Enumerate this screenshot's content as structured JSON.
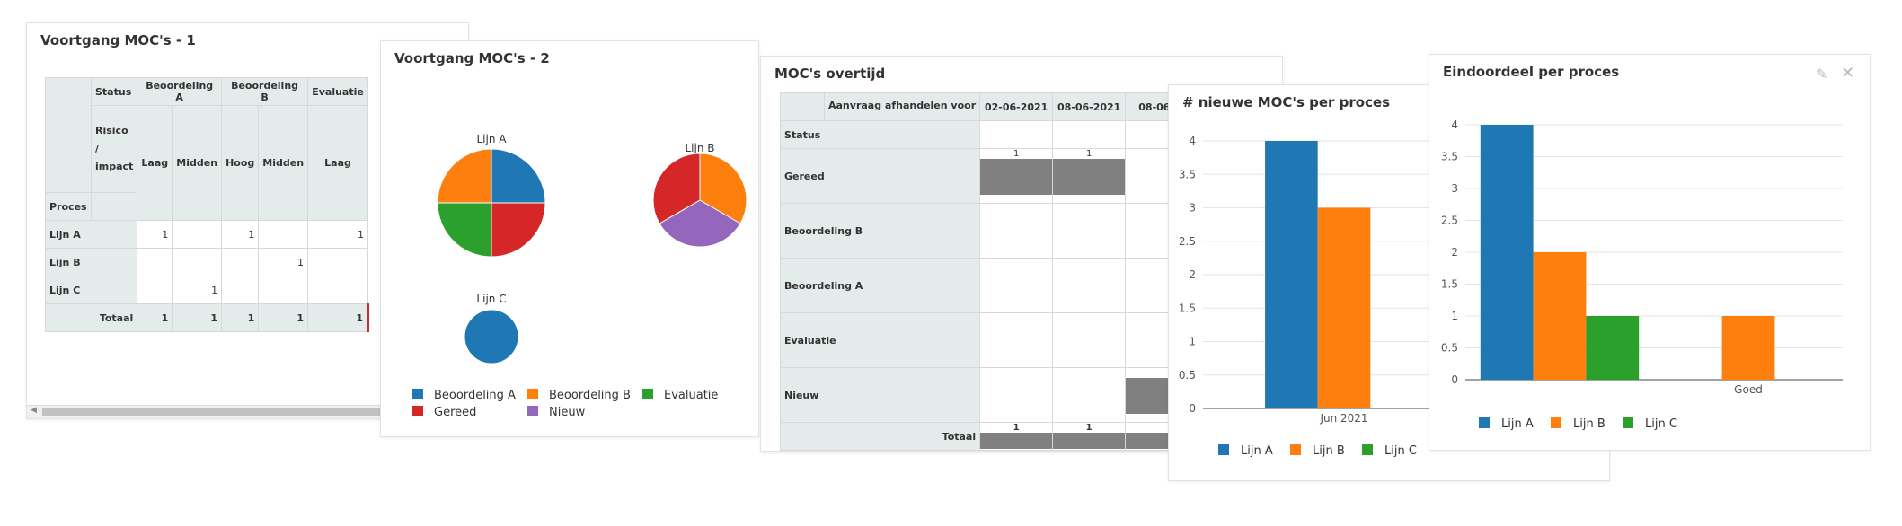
{
  "colors": {
    "blue": "#1f77b4",
    "orange": "#ff7f0e",
    "green": "#2ca02c",
    "red": "#d62728",
    "purple": "#9467bd",
    "grey": "#808080",
    "header_bg": "#e4eceb"
  },
  "panel1": {
    "title": "Voortgang MOC's - 1",
    "header_status": "Status",
    "header_risico": "Risico / impact",
    "header_proces": "Proces",
    "status_cols": [
      "Beoordeling A",
      "Beoordeling B",
      "Evaluatie"
    ],
    "impact_cols": [
      "Laag",
      "Midden",
      "Hoog",
      "Midden",
      "Laag"
    ],
    "rows": [
      {
        "label": "Lijn A",
        "values": [
          "1",
          "",
          "1",
          "",
          "1"
        ]
      },
      {
        "label": "Lijn B",
        "values": [
          "",
          "",
          "",
          "1",
          ""
        ]
      },
      {
        "label": "Lijn C",
        "values": [
          "",
          "1",
          "",
          "",
          ""
        ]
      }
    ],
    "total": {
      "label": "Totaal",
      "values": [
        "1",
        "1",
        "1",
        "1",
        "1"
      ]
    }
  },
  "panel2": {
    "title": "Voortgang MOC's - 2",
    "chart_data": {
      "type": "pie",
      "pies": [
        {
          "label": "Lijn A",
          "slices": [
            {
              "name": "Beoordeling A",
              "value": 1
            },
            {
              "name": "Gereed",
              "value": 1
            },
            {
              "name": "Evaluatie",
              "value": 1
            },
            {
              "name": "Beoordeling B",
              "value": 1
            }
          ]
        },
        {
          "label": "Lijn B",
          "slices": [
            {
              "name": "Beoordeling B",
              "value": 1
            },
            {
              "name": "Nieuw",
              "value": 1
            },
            {
              "name": "Gereed",
              "value": 1
            }
          ]
        },
        {
          "label": "Lijn C",
          "slices": [
            {
              "name": "Beoordeling A",
              "value": 1
            }
          ]
        }
      ],
      "legend": [
        "Beoordeling A",
        "Beoordeling B",
        "Evaluatie",
        "Gereed",
        "Nieuw"
      ]
    }
  },
  "panel3": {
    "title": "MOC's overtijd",
    "header_top": "Aanvraag afhandelen voor",
    "header_status": "Status",
    "dates": [
      "02-06-2021",
      "08-06-2021",
      "08-06-"
    ],
    "rows": [
      {
        "label": "Gereed",
        "values": [
          "1",
          "1",
          ""
        ]
      },
      {
        "label": "Beoordeling B",
        "values": [
          "",
          "",
          ""
        ]
      },
      {
        "label": "Beoordeling A",
        "values": [
          "",
          "",
          ""
        ]
      },
      {
        "label": "Evaluatie",
        "values": [
          "",
          "",
          ""
        ]
      },
      {
        "label": "Nieuw",
        "values": [
          "",
          "",
          "1"
        ]
      }
    ],
    "total": {
      "label": "Totaal",
      "values": [
        "1",
        "1",
        "1"
      ]
    }
  },
  "panel4": {
    "title": "# nieuwe MOC's per proces",
    "chart_data": {
      "type": "bar",
      "categories": [
        "Jun 2021"
      ],
      "series": [
        {
          "name": "Lijn A",
          "values": [
            4
          ]
        },
        {
          "name": "Lijn B",
          "values": [
            3
          ]
        },
        {
          "name": "Lijn C",
          "values": [
            0
          ]
        }
      ],
      "ylim": [
        0,
        4
      ],
      "yticks": [
        "0",
        "0.5",
        "1",
        "1.5",
        "2",
        "2.5",
        "3",
        "3.5",
        "4"
      ]
    }
  },
  "panel5": {
    "title": "Eindoordeel per proces",
    "chart_data": {
      "type": "bar",
      "categories": [
        "",
        "Goed"
      ],
      "series": [
        {
          "name": "Lijn A",
          "values": [
            4,
            0
          ]
        },
        {
          "name": "Lijn B",
          "values": [
            2,
            1
          ]
        },
        {
          "name": "Lijn C",
          "values": [
            1,
            0
          ]
        }
      ],
      "ylim": [
        0,
        4
      ],
      "yticks": [
        "0",
        "0.5",
        "1",
        "1.5",
        "2",
        "2.5",
        "3",
        "3.5",
        "4"
      ]
    }
  }
}
